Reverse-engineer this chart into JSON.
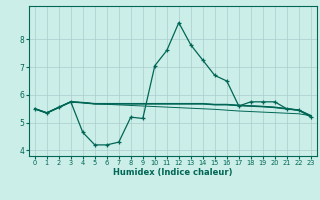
{
  "xlabel": "Humidex (Indice chaleur)",
  "bg_color": "#cceee8",
  "grid_color": "#aacccc",
  "line_color": "#006655",
  "x": [
    0,
    1,
    2,
    3,
    4,
    5,
    6,
    7,
    8,
    9,
    10,
    11,
    12,
    13,
    14,
    15,
    16,
    17,
    18,
    19,
    20,
    21,
    22,
    23
  ],
  "line1_y": [
    5.5,
    5.35,
    5.55,
    5.75,
    4.65,
    4.2,
    4.2,
    4.3,
    5.2,
    5.15,
    7.05,
    7.6,
    8.6,
    7.8,
    7.25,
    6.7,
    6.5,
    5.6,
    5.75,
    5.75,
    5.75,
    5.5,
    5.45,
    5.2
  ],
  "line2_y": [
    5.5,
    5.35,
    5.55,
    5.75,
    5.72,
    5.68,
    5.68,
    5.68,
    5.68,
    5.68,
    5.68,
    5.68,
    5.68,
    5.68,
    5.68,
    5.65,
    5.65,
    5.62,
    5.6,
    5.58,
    5.55,
    5.5,
    5.45,
    5.25
  ],
  "line3_y": [
    5.5,
    5.35,
    5.55,
    5.75,
    5.72,
    5.68,
    5.68,
    5.68,
    5.68,
    5.68,
    5.68,
    5.68,
    5.68,
    5.68,
    5.68,
    5.65,
    5.65,
    5.62,
    5.6,
    5.58,
    5.55,
    5.5,
    5.45,
    5.25
  ],
  "line4_y": [
    5.5,
    5.35,
    5.55,
    5.75,
    5.72,
    5.68,
    5.66,
    5.64,
    5.62,
    5.6,
    5.58,
    5.56,
    5.54,
    5.52,
    5.5,
    5.48,
    5.45,
    5.42,
    5.4,
    5.38,
    5.36,
    5.34,
    5.32,
    5.25
  ],
  "ylim": [
    3.8,
    9.2
  ],
  "xlim": [
    -0.5,
    23.5
  ],
  "yticks": [
    4,
    5,
    6,
    7,
    8
  ],
  "xticks": [
    0,
    1,
    2,
    3,
    4,
    5,
    6,
    7,
    8,
    9,
    10,
    11,
    12,
    13,
    14,
    15,
    16,
    17,
    18,
    19,
    20,
    21,
    22,
    23
  ]
}
